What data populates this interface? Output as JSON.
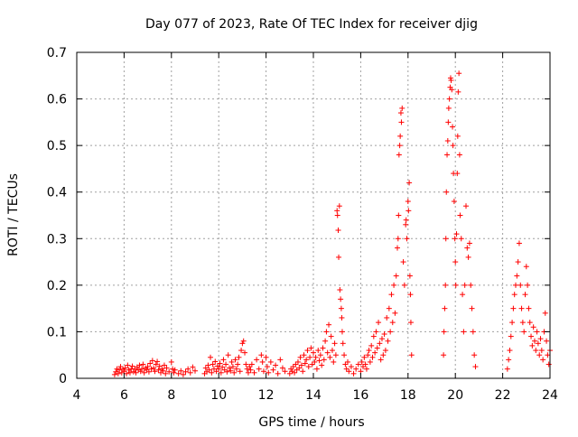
{
  "chart_data": {
    "type": "scatter",
    "title": "Day 077 of 2023, Rate Of TEC Index for receiver djig",
    "xlabel": "GPS time / hours",
    "ylabel": "ROTI / TECUs",
    "xlim": [
      4,
      24
    ],
    "ylim": [
      0,
      0.7
    ],
    "x_ticks": [
      4,
      6,
      8,
      10,
      12,
      14,
      16,
      18,
      20,
      22,
      24
    ],
    "y_ticks": [
      0,
      0.1,
      0.2,
      0.3,
      0.4,
      0.5,
      0.6,
      0.7
    ],
    "x_tick_labels": [
      "4",
      "6",
      "8",
      "10",
      "12",
      "14",
      "16",
      "18",
      "20",
      "22",
      "24"
    ],
    "y_tick_labels": [
      "0",
      "0.1",
      "0.2",
      "0.3",
      "0.4",
      "0.5",
      "0.6",
      "0.7"
    ],
    "grid": true,
    "marker": "+",
    "marker_color": "#ff0000",
    "series": [
      {
        "name": "ROTI",
        "points": [
          [
            5.6,
            0.008
          ],
          [
            5.65,
            0.014
          ],
          [
            5.7,
            0.02
          ],
          [
            5.75,
            0.01
          ],
          [
            5.8,
            0.018
          ],
          [
            5.85,
            0.025
          ],
          [
            5.9,
            0.012
          ],
          [
            5.95,
            0.02
          ],
          [
            6.0,
            0.015
          ],
          [
            6.05,
            0.022
          ],
          [
            6.1,
            0.01
          ],
          [
            6.15,
            0.028
          ],
          [
            6.2,
            0.018
          ],
          [
            6.25,
            0.012
          ],
          [
            6.3,
            0.02
          ],
          [
            6.35,
            0.026
          ],
          [
            6.4,
            0.014
          ],
          [
            6.45,
            0.02
          ],
          [
            6.5,
            0.012
          ],
          [
            6.55,
            0.024
          ],
          [
            6.6,
            0.018
          ],
          [
            6.65,
            0.028
          ],
          [
            6.7,
            0.015
          ],
          [
            6.75,
            0.02
          ],
          [
            6.8,
            0.03
          ],
          [
            6.85,
            0.012
          ],
          [
            6.9,
            0.022
          ],
          [
            6.95,
            0.018
          ],
          [
            7.0,
            0.025
          ],
          [
            7.05,
            0.014
          ],
          [
            7.1,
            0.032
          ],
          [
            7.15,
            0.02
          ],
          [
            7.2,
            0.038
          ],
          [
            7.25,
            0.022
          ],
          [
            7.3,
            0.015
          ],
          [
            7.35,
            0.03
          ],
          [
            7.4,
            0.036
          ],
          [
            7.45,
            0.018
          ],
          [
            7.5,
            0.026
          ],
          [
            7.55,
            0.012
          ],
          [
            7.6,
            0.02
          ],
          [
            7.65,
            0.016
          ],
          [
            7.7,
            0.028
          ],
          [
            7.75,
            0.01
          ],
          [
            7.8,
            0.022
          ],
          [
            7.9,
            0.014
          ],
          [
            8.0,
            0.035
          ],
          [
            8.05,
            0.02
          ],
          [
            8.1,
            0.012
          ],
          [
            8.15,
            0.018
          ],
          [
            8.3,
            0.01
          ],
          [
            8.4,
            0.016
          ],
          [
            8.5,
            0.008
          ],
          [
            8.6,
            0.014
          ],
          [
            8.7,
            0.02
          ],
          [
            8.8,
            0.012
          ],
          [
            8.9,
            0.024
          ],
          [
            9.0,
            0.016
          ],
          [
            9.4,
            0.01
          ],
          [
            9.45,
            0.022
          ],
          [
            9.5,
            0.014
          ],
          [
            9.55,
            0.028
          ],
          [
            9.6,
            0.018
          ],
          [
            9.65,
            0.045
          ],
          [
            9.7,
            0.012
          ],
          [
            9.75,
            0.03
          ],
          [
            9.8,
            0.02
          ],
          [
            9.85,
            0.036
          ],
          [
            9.9,
            0.015
          ],
          [
            9.95,
            0.026
          ],
          [
            10.0,
            0.02
          ],
          [
            10.05,
            0.032
          ],
          [
            10.1,
            0.012
          ],
          [
            10.15,
            0.024
          ],
          [
            10.2,
            0.04
          ],
          [
            10.25,
            0.018
          ],
          [
            10.3,
            0.03
          ],
          [
            10.35,
            0.014
          ],
          [
            10.4,
            0.05
          ],
          [
            10.45,
            0.022
          ],
          [
            10.5,
            0.016
          ],
          [
            10.55,
            0.035
          ],
          [
            10.6,
            0.025
          ],
          [
            10.65,
            0.012
          ],
          [
            10.7,
            0.04
          ],
          [
            10.75,
            0.02
          ],
          [
            10.8,
            0.03
          ],
          [
            10.85,
            0.045
          ],
          [
            10.9,
            0.015
          ],
          [
            10.95,
            0.06
          ],
          [
            11.0,
            0.075
          ],
          [
            11.05,
            0.08
          ],
          [
            11.1,
            0.055
          ],
          [
            11.15,
            0.03
          ],
          [
            11.2,
            0.02
          ],
          [
            11.25,
            0.012
          ],
          [
            11.3,
            0.025
          ],
          [
            11.35,
            0.018
          ],
          [
            11.4,
            0.03
          ],
          [
            11.5,
            0.012
          ],
          [
            11.6,
            0.04
          ],
          [
            11.7,
            0.02
          ],
          [
            11.8,
            0.05
          ],
          [
            11.85,
            0.035
          ],
          [
            11.9,
            0.015
          ],
          [
            12.0,
            0.045
          ],
          [
            12.05,
            0.025
          ],
          [
            12.1,
            0.012
          ],
          [
            12.2,
            0.035
          ],
          [
            12.3,
            0.018
          ],
          [
            12.4,
            0.028
          ],
          [
            12.5,
            0.01
          ],
          [
            12.6,
            0.04
          ],
          [
            12.7,
            0.022
          ],
          [
            12.8,
            0.015
          ],
          [
            13.0,
            0.01
          ],
          [
            13.05,
            0.02
          ],
          [
            13.1,
            0.015
          ],
          [
            13.15,
            0.025
          ],
          [
            13.2,
            0.012
          ],
          [
            13.25,
            0.03
          ],
          [
            13.3,
            0.018
          ],
          [
            13.35,
            0.035
          ],
          [
            13.4,
            0.022
          ],
          [
            13.45,
            0.045
          ],
          [
            13.5,
            0.028
          ],
          [
            13.55,
            0.015
          ],
          [
            13.6,
            0.05
          ],
          [
            13.65,
            0.032
          ],
          [
            13.7,
            0.04
          ],
          [
            13.75,
            0.06
          ],
          [
            13.8,
            0.025
          ],
          [
            13.85,
            0.045
          ],
          [
            13.9,
            0.065
          ],
          [
            13.95,
            0.03
          ],
          [
            14.0,
            0.055
          ],
          [
            14.05,
            0.035
          ],
          [
            14.1,
            0.045
          ],
          [
            14.15,
            0.02
          ],
          [
            14.2,
            0.06
          ],
          [
            14.25,
            0.038
          ],
          [
            14.3,
            0.05
          ],
          [
            14.35,
            0.028
          ],
          [
            14.4,
            0.065
          ],
          [
            14.45,
            0.04
          ],
          [
            14.5,
            0.08
          ],
          [
            14.55,
            0.1
          ],
          [
            14.6,
            0.055
          ],
          [
            14.65,
            0.115
          ],
          [
            14.7,
            0.045
          ],
          [
            14.75,
            0.09
          ],
          [
            14.8,
            0.06
          ],
          [
            14.85,
            0.035
          ],
          [
            14.9,
            0.075
          ],
          [
            14.95,
            0.05
          ],
          [
            15.0,
            0.36
          ],
          [
            15.02,
            0.35
          ],
          [
            15.05,
            0.318
          ],
          [
            15.07,
            0.26
          ],
          [
            15.1,
            0.37
          ],
          [
            15.12,
            0.19
          ],
          [
            15.15,
            0.17
          ],
          [
            15.18,
            0.15
          ],
          [
            15.2,
            0.13
          ],
          [
            15.22,
            0.1
          ],
          [
            15.25,
            0.075
          ],
          [
            15.3,
            0.05
          ],
          [
            15.35,
            0.03
          ],
          [
            15.4,
            0.02
          ],
          [
            15.45,
            0.035
          ],
          [
            15.5,
            0.015
          ],
          [
            15.6,
            0.025
          ],
          [
            15.7,
            0.01
          ],
          [
            15.8,
            0.02
          ],
          [
            15.9,
            0.03
          ],
          [
            16.0,
            0.015
          ],
          [
            16.05,
            0.035
          ],
          [
            16.1,
            0.025
          ],
          [
            16.15,
            0.045
          ],
          [
            16.2,
            0.03
          ],
          [
            16.25,
            0.02
          ],
          [
            16.3,
            0.05
          ],
          [
            16.35,
            0.06
          ],
          [
            16.4,
            0.035
          ],
          [
            16.45,
            0.07
          ],
          [
            16.5,
            0.045
          ],
          [
            16.55,
            0.09
          ],
          [
            16.6,
            0.055
          ],
          [
            16.65,
            0.1
          ],
          [
            16.7,
            0.065
          ],
          [
            16.75,
            0.12
          ],
          [
            16.8,
            0.075
          ],
          [
            16.85,
            0.04
          ],
          [
            16.9,
            0.085
          ],
          [
            16.95,
            0.05
          ],
          [
            17.0,
            0.095
          ],
          [
            17.05,
            0.06
          ],
          [
            17.1,
            0.13
          ],
          [
            17.15,
            0.08
          ],
          [
            17.2,
            0.15
          ],
          [
            17.25,
            0.1
          ],
          [
            17.3,
            0.18
          ],
          [
            17.35,
            0.12
          ],
          [
            17.4,
            0.2
          ],
          [
            17.45,
            0.14
          ],
          [
            17.5,
            0.22
          ],
          [
            17.55,
            0.28
          ],
          [
            17.58,
            0.3
          ],
          [
            17.6,
            0.35
          ],
          [
            17.62,
            0.48
          ],
          [
            17.65,
            0.5
          ],
          [
            17.67,
            0.52
          ],
          [
            17.7,
            0.57
          ],
          [
            17.72,
            0.55
          ],
          [
            17.75,
            0.58
          ],
          [
            17.8,
            0.25
          ],
          [
            17.85,
            0.2
          ],
          [
            17.9,
            0.33
          ],
          [
            17.92,
            0.34
          ],
          [
            17.95,
            0.3
          ],
          [
            18.0,
            0.38
          ],
          [
            18.02,
            0.36
          ],
          [
            18.05,
            0.42
          ],
          [
            18.08,
            0.22
          ],
          [
            18.1,
            0.18
          ],
          [
            18.12,
            0.12
          ],
          [
            18.15,
            0.05
          ],
          [
            19.5,
            0.05
          ],
          [
            19.52,
            0.1
          ],
          [
            19.55,
            0.15
          ],
          [
            19.58,
            0.2
          ],
          [
            19.6,
            0.3
          ],
          [
            19.62,
            0.4
          ],
          [
            19.65,
            0.48
          ],
          [
            19.68,
            0.51
          ],
          [
            19.7,
            0.55
          ],
          [
            19.72,
            0.58
          ],
          [
            19.75,
            0.6
          ],
          [
            19.78,
            0.625
          ],
          [
            19.8,
            0.645
          ],
          [
            19.82,
            0.64
          ],
          [
            19.85,
            0.62
          ],
          [
            19.88,
            0.54
          ],
          [
            19.9,
            0.5
          ],
          [
            19.92,
            0.44
          ],
          [
            19.95,
            0.38
          ],
          [
            19.98,
            0.3
          ],
          [
            20.0,
            0.25
          ],
          [
            20.02,
            0.2
          ],
          [
            20.05,
            0.31
          ],
          [
            20.08,
            0.44
          ],
          [
            20.1,
            0.52
          ],
          [
            20.12,
            0.615
          ],
          [
            20.15,
            0.655
          ],
          [
            20.18,
            0.48
          ],
          [
            20.2,
            0.35
          ],
          [
            20.25,
            0.3
          ],
          [
            20.3,
            0.18
          ],
          [
            20.35,
            0.1
          ],
          [
            20.4,
            0.2
          ],
          [
            20.45,
            0.37
          ],
          [
            20.5,
            0.28
          ],
          [
            20.55,
            0.26
          ],
          [
            20.6,
            0.29
          ],
          [
            20.65,
            0.2
          ],
          [
            20.7,
            0.15
          ],
          [
            20.75,
            0.1
          ],
          [
            20.8,
            0.05
          ],
          [
            20.85,
            0.025
          ],
          [
            22.2,
            0.02
          ],
          [
            22.25,
            0.04
          ],
          [
            22.3,
            0.06
          ],
          [
            22.35,
            0.09
          ],
          [
            22.4,
            0.12
          ],
          [
            22.45,
            0.15
          ],
          [
            22.5,
            0.18
          ],
          [
            22.55,
            0.2
          ],
          [
            22.6,
            0.22
          ],
          [
            22.65,
            0.25
          ],
          [
            22.7,
            0.29
          ],
          [
            22.75,
            0.2
          ],
          [
            22.8,
            0.15
          ],
          [
            22.85,
            0.12
          ],
          [
            22.9,
            0.1
          ],
          [
            22.95,
            0.18
          ],
          [
            23.0,
            0.24
          ],
          [
            23.05,
            0.2
          ],
          [
            23.1,
            0.15
          ],
          [
            23.15,
            0.12
          ],
          [
            23.2,
            0.09
          ],
          [
            23.25,
            0.07
          ],
          [
            23.3,
            0.11
          ],
          [
            23.35,
            0.08
          ],
          [
            23.4,
            0.06
          ],
          [
            23.45,
            0.1
          ],
          [
            23.5,
            0.075
          ],
          [
            23.55,
            0.05
          ],
          [
            23.6,
            0.085
          ],
          [
            23.65,
            0.06
          ],
          [
            23.7,
            0.04
          ],
          [
            23.75,
            0.1
          ],
          [
            23.8,
            0.14
          ],
          [
            23.85,
            0.08
          ],
          [
            23.9,
            0.05
          ],
          [
            23.95,
            0.03
          ],
          [
            24.0,
            0.06
          ]
        ]
      }
    ]
  }
}
